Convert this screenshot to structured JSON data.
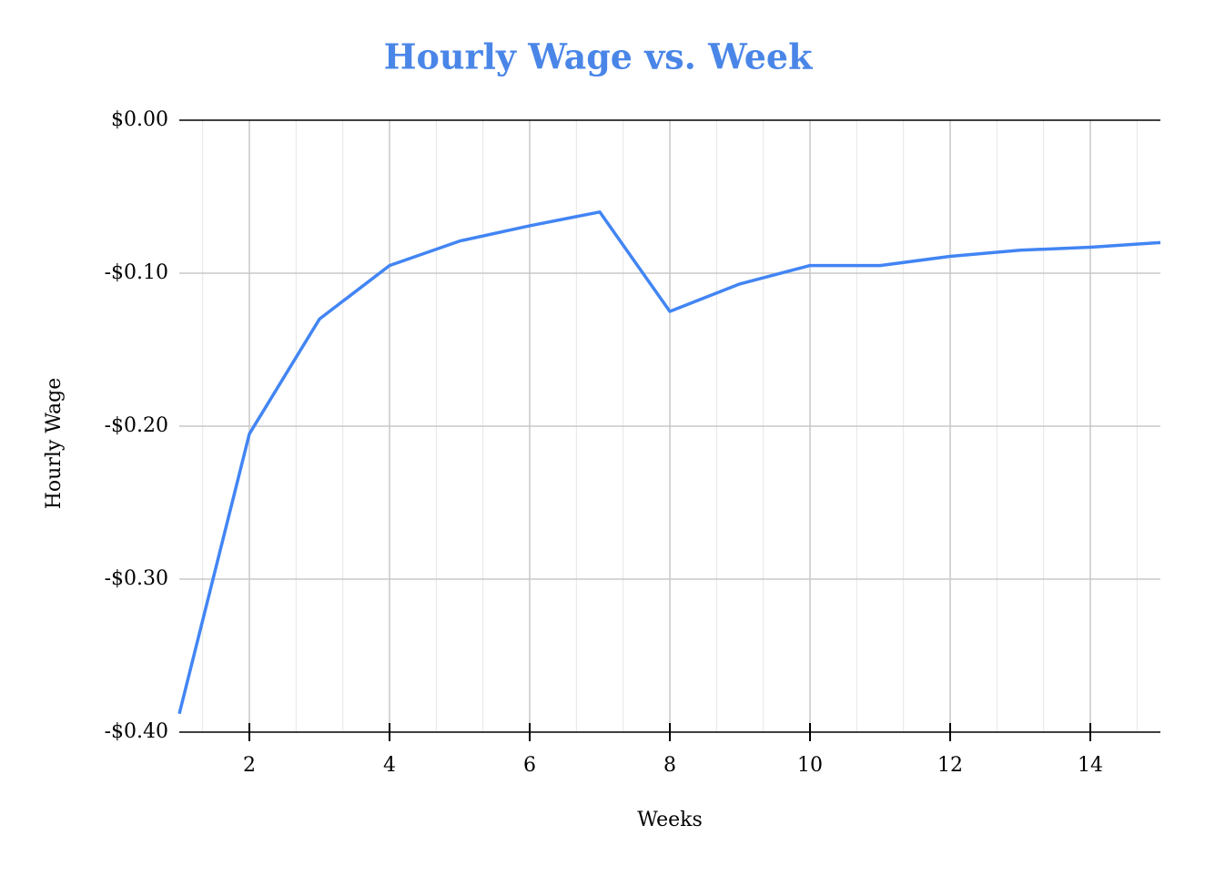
{
  "chart_data": {
    "type": "line",
    "title": "Hourly Wage vs. Week",
    "x_label": "Weeks",
    "y_label": "Hourly Wage",
    "x": [
      1,
      2,
      3,
      4,
      5,
      6,
      7,
      8,
      9,
      10,
      11,
      12,
      13,
      14,
      15
    ],
    "series": [
      {
        "name": "Hourly Wage",
        "color": "#4285f4",
        "values": [
          -0.388,
          -0.205,
          -0.13,
          -0.095,
          -0.079,
          -0.069,
          -0.06,
          -0.125,
          -0.107,
          -0.095,
          -0.095,
          -0.089,
          -0.085,
          -0.083,
          -0.08
        ]
      }
    ],
    "xlim": [
      1,
      15
    ],
    "xticks": [
      2,
      4,
      6,
      8,
      10,
      12,
      14
    ],
    "ylim": [
      -0.4,
      0
    ],
    "yticks": [
      {
        "value": 0,
        "label": "$0.00"
      },
      {
        "value": -0.1,
        "label": "-$0.10"
      },
      {
        "value": -0.2,
        "label": "-$0.20"
      },
      {
        "value": -0.3,
        "label": "-$0.30"
      },
      {
        "value": -0.4,
        "label": "-$0.40"
      }
    ],
    "grid": true,
    "title_color": "#4a86e8"
  }
}
